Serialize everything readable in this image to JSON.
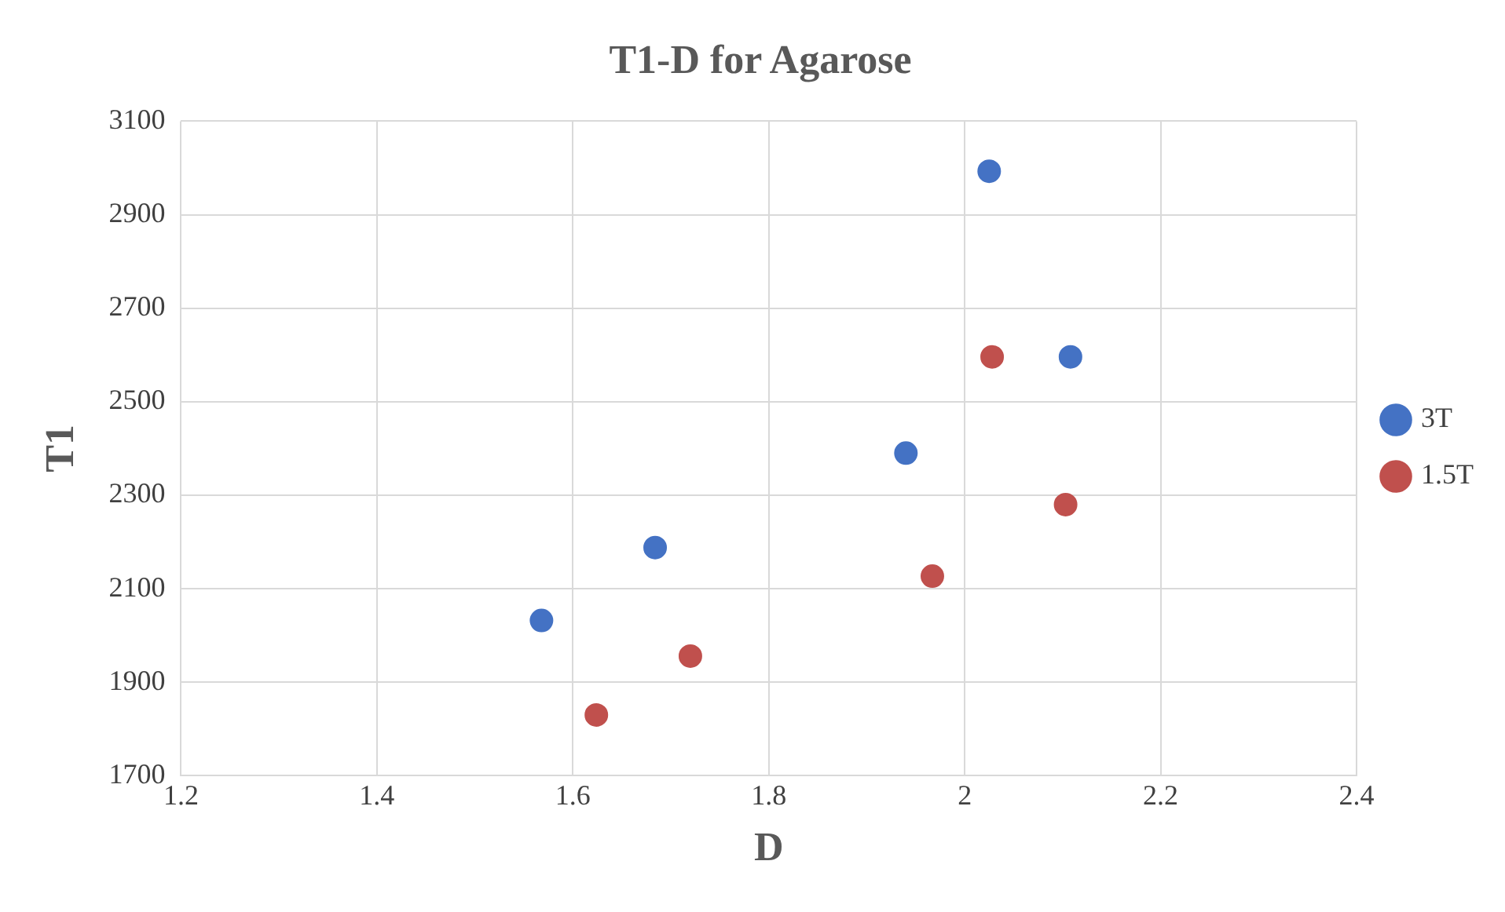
{
  "chart_data": {
    "type": "scatter",
    "title": "T1-D for Agarose",
    "xlabel": "D",
    "ylabel": "T1",
    "xlim": [
      1.2,
      2.4
    ],
    "xticks": [
      1.2,
      1.4,
      1.6,
      1.8,
      2,
      2.2,
      2.4
    ],
    "ylim": [
      1700,
      3100
    ],
    "yticks": [
      1700,
      1900,
      2100,
      2300,
      2500,
      2700,
      2900,
      3100
    ],
    "grid": true,
    "legend": "right",
    "marker": "circle",
    "series": [
      {
        "name": "3T",
        "color": "#4472c4",
        "x": [
          1.568,
          1.684,
          1.94,
          2.025,
          2.108
        ],
        "values": [
          2032,
          2188,
          2390,
          2993,
          2596
        ]
      },
      {
        "name": "1.5T",
        "color": "#c0504d",
        "x": [
          1.624,
          1.72,
          1.967,
          2.028,
          2.103
        ],
        "values": [
          1830,
          1956,
          2127,
          2596,
          2280
        ]
      }
    ]
  }
}
